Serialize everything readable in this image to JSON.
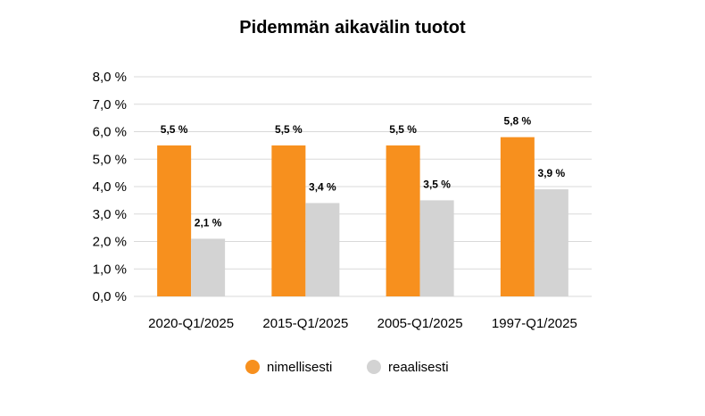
{
  "chart_data": {
    "type": "bar",
    "title": "Pidemmän aikavälin tuotot",
    "categories": [
      "2020-Q1/2025",
      "2015-Q1/2025",
      "2005-Q1/2025",
      "1997-Q1/2025"
    ],
    "series": [
      {
        "name": "nimellisesti",
        "color": "#F7901E",
        "values": [
          5.5,
          5.5,
          5.5,
          5.8
        ],
        "labels": [
          "5,5 %",
          "5,5 %",
          "5,5 %",
          "5,8 %"
        ]
      },
      {
        "name": "reaalisesti",
        "color": "#D3D3D3",
        "values": [
          2.1,
          3.4,
          3.5,
          3.9
        ],
        "labels": [
          "2,1 %",
          "3,4 %",
          "3,5 %",
          "3,9 %"
        ]
      }
    ],
    "ylim": [
      0,
      8
    ],
    "yticks": [
      0,
      1,
      2,
      3,
      4,
      5,
      6,
      7,
      8
    ],
    "ytick_labels": [
      "0,0 %",
      "1,0 %",
      "2,0 %",
      "3,0 %",
      "4,0 %",
      "5,0 %",
      "6,0 %",
      "7,0 %",
      "8,0 %"
    ],
    "grid": true,
    "gridline_color": "#D9D9D9",
    "legend_position": "bottom-center"
  }
}
